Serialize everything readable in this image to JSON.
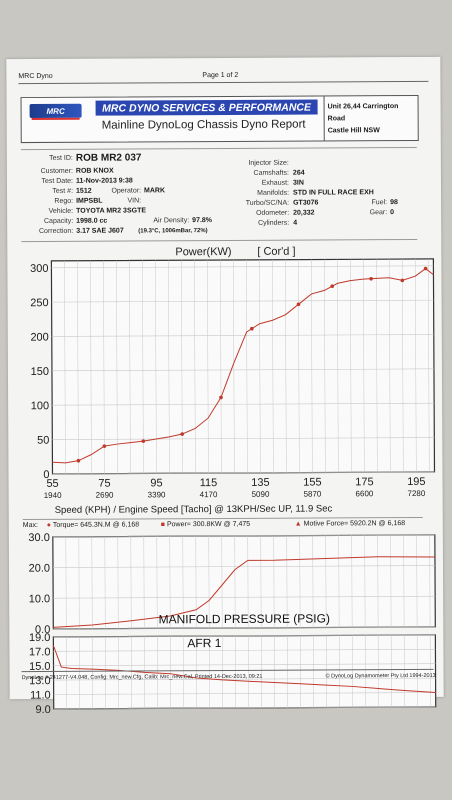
{
  "page": {
    "app_name": "MRC Dyno",
    "page_label": "Page 1 of 2"
  },
  "header": {
    "logo_text": "MRC",
    "company": "MRC DYNO SERVICES & PERFORMANCE",
    "report_title": "Mainline DynoLog Chassis Dyno Report",
    "address_line1": "Unit 26,44 Carrington Road",
    "address_line2": "Castle Hill NSW"
  },
  "info": {
    "test_id_label": "Test ID:",
    "test_id": "ROB MR2 037",
    "customer_label": "Customer:",
    "customer": "ROB KNOX",
    "test_date_label": "Test Date:",
    "test_date": "11-Nov-2013 9:38",
    "test_no_label": "Test #:",
    "test_no": "1512",
    "operator_label": "Operator:",
    "operator": "MARK",
    "rego_label": "Rego:",
    "rego": "IMPSBL",
    "vin_label": "VIN:",
    "vin": "",
    "vehicle_label": "Vehicle:",
    "vehicle": "TOYOTA MR2 3SGTE",
    "capacity_label": "Capacity:",
    "capacity": "1998.0 cc",
    "air_density_label": "Air Density:",
    "air_density": "97.8%",
    "correction_label": "Correction:",
    "correction": "3.17 SAE J607",
    "conditions": "(19.3°C, 1006mBar, 72%)",
    "injector_label": "Injector Size:",
    "injector": "",
    "camshafts_label": "Camshafts:",
    "camshafts": "264",
    "exhaust_label": "Exhaust:",
    "exhaust": "3IN",
    "manifolds_label": "Manifolds:",
    "manifolds": "STD IN FULL RACE EXH",
    "turbo_label": "Turbo/SC/NA:",
    "turbo": "GT3076",
    "fuel_label": "Fuel:",
    "fuel": "98",
    "odometer_label": "Odometer:",
    "odometer": "20,332",
    "gear_label": "Gear:",
    "gear": "0",
    "cylinders_label": "Cylinders:",
    "cylinders": "4"
  },
  "max_line": {
    "max_label": "Max:",
    "torque": "Torque= 645.3N.M @ 6,168",
    "power": "Power= 300.8KW @ 7,475",
    "motive": "Motive Force= 5920.2N @ 6,168"
  },
  "colors": {
    "curve": "#c0392b",
    "grid": "#c8c8c8",
    "frame": "#333333"
  },
  "chart_data": [
    {
      "type": "line",
      "title": "Power(KW)",
      "subtitle": "[ Cor'd ]",
      "xlabel": "Speed (KPH) / Engine Speed [Tacho] @ 13KPH/Sec UP, 11.9 Sec",
      "ylim": [
        0,
        310
      ],
      "xlim": [
        55,
        202
      ],
      "y_ticks": [
        300,
        250,
        200,
        150,
        100,
        50,
        0
      ],
      "x_ticks": [
        55,
        75,
        95,
        115,
        135,
        155,
        175,
        195
      ],
      "x_tick_labels": [
        "55",
        "75",
        "95",
        "115",
        "135",
        "155",
        "175",
        "195"
      ],
      "rpm_tick_labels": [
        "1940",
        "2690",
        "3390",
        "4170",
        "5090",
        "5870",
        "6600",
        "7280"
      ],
      "series": [
        {
          "x": [
            55,
            60,
            65,
            70,
            75,
            80,
            85,
            90,
            95,
            100,
            105,
            110,
            115,
            120,
            125,
            130,
            135,
            140,
            145,
            150,
            155,
            160,
            165,
            170,
            175,
            180,
            185,
            190,
            195,
            199,
            202
          ],
          "y": [
            17,
            16,
            19,
            28,
            40,
            43,
            45,
            47,
            50,
            53,
            57,
            65,
            80,
            110,
            160,
            205,
            217,
            222,
            230,
            245,
            260,
            265,
            275,
            279,
            281,
            282,
            283,
            279,
            285,
            296,
            287
          ]
        }
      ],
      "markers_x": [
        65,
        75,
        90,
        105,
        120,
        132,
        150,
        163,
        178,
        190,
        199
      ]
    },
    {
      "type": "line",
      "title": "MANIFOLD PRESSURE (PSIG)",
      "ylim": [
        0,
        30
      ],
      "y_ticks": [
        30.0,
        20.0,
        10.0,
        0.0
      ],
      "y_tick_labels": [
        "30.0",
        "20.0",
        "10.0",
        "0.0"
      ],
      "series": [
        {
          "x": [
            55,
            70,
            85,
            100,
            110,
            115,
            120,
            125,
            130,
            140,
            160,
            180,
            202
          ],
          "y": [
            0.5,
            1.2,
            2.5,
            4,
            6,
            9,
            14,
            19,
            22,
            22,
            22.5,
            23,
            22.8
          ]
        }
      ]
    },
    {
      "type": "line",
      "title": "AFR 1",
      "ylim": [
        9,
        19
      ],
      "y_ticks": [
        19.0,
        17.0,
        15.0,
        13.0,
        11.0,
        9.0
      ],
      "y_tick_labels": [
        "19.0",
        "17.0",
        "15.0",
        "13.0",
        "11.0",
        "9.0"
      ],
      "series": [
        {
          "x": [
            55,
            58,
            62,
            70,
            80,
            90,
            100,
            110,
            120,
            130,
            140,
            150,
            160,
            170,
            180,
            190,
            202
          ],
          "y": [
            17.8,
            14.8,
            14.6,
            14.5,
            14.3,
            14.0,
            13.8,
            13.2,
            12.9,
            12.7,
            12.5,
            12.3,
            12.1,
            11.9,
            11.6,
            11.3,
            11.0
          ]
        }
      ]
    }
  ],
  "footer": {
    "left": "DynoLog # 241277-V4.048, Config: Mrc_new.Cfg, Calib: Mrc_new.Cal, Printed 14-Dec-2013, 09:21",
    "right": "© DynoLog Dynamometer Pty Ltd 1994-2013"
  }
}
